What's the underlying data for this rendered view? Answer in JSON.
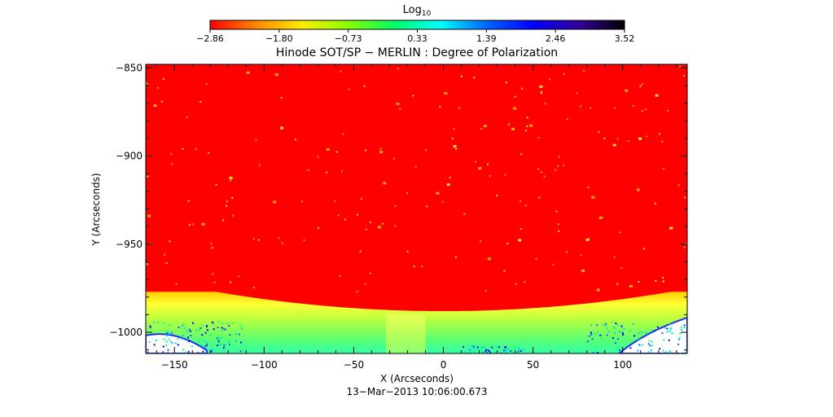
{
  "chart_data": {
    "type": "heatmap",
    "title": "Hinode SOT/SP − MERLIN : Degree of Polarization",
    "subtitle": "13−Mar−2013 10:06:00.673",
    "xlabel": "X (Arcseconds)",
    "ylabel": "Y (Arcseconds)",
    "xlim": [
      -166,
      136
    ],
    "ylim": [
      -1012,
      -848
    ],
    "x_ticks": [
      -150,
      -100,
      -50,
      0,
      50,
      100
    ],
    "x_tick_labels": [
      "−150",
      "−100",
      "−50",
      "0",
      "50",
      "100"
    ],
    "y_ticks": [
      -1000,
      -950,
      -900,
      -850
    ],
    "y_tick_labels": [
      "−1000",
      "−950",
      "−900",
      "−850"
    ],
    "colorbar": {
      "label_base": "Log",
      "label_sub": "10",
      "min": -2.86,
      "max": 3.52,
      "tick_labels": [
        "−2.86",
        "−1.80",
        "−0.73",
        "0.33",
        "1.39",
        "2.46",
        "3.52"
      ],
      "colors": [
        "#ff0000",
        "#ff8800",
        "#ffee00",
        "#88ff00",
        "#00ff66",
        "#00ffff",
        "#0066ff",
        "#0000ff",
        "#330099",
        "#000000"
      ]
    },
    "field": {
      "background_value": -2.86,
      "limb_y_at_x0": -988,
      "limb_y_at_edges": -977,
      "limb_band_values": [
        -2.0,
        -1.4,
        -0.9,
        -0.7
      ],
      "off_limb_edge_value": 1.2
    },
    "colors": {
      "off_limb": "#ffffff",
      "frame": "#000000"
    }
  }
}
